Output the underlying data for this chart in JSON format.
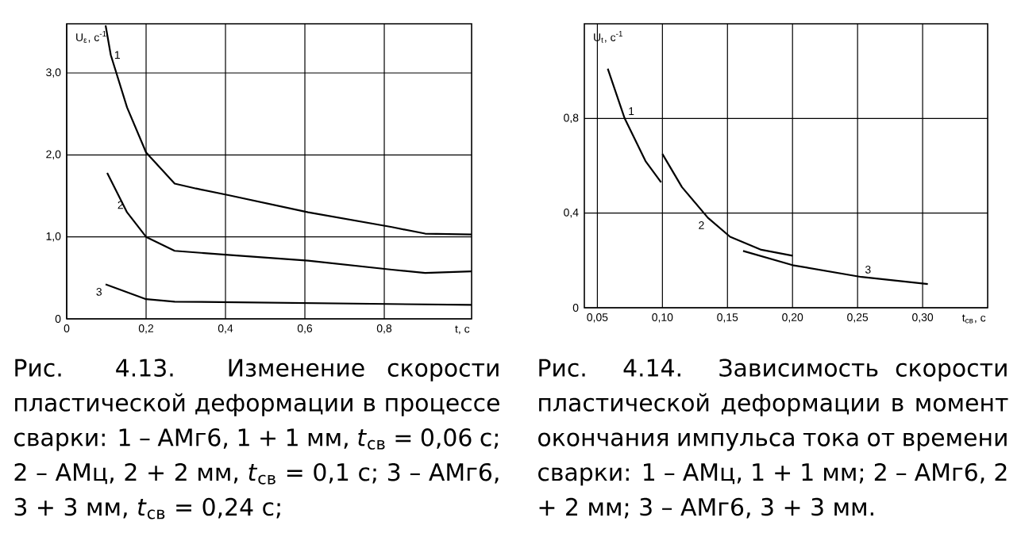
{
  "chart_data": [
    {
      "type": "line",
      "ylabel": "U$_{ε}$, с$^{-1}$",
      "xlabel": "t, с",
      "xlim": [
        0,
        1.02
      ],
      "ylim": [
        0,
        3.6
      ],
      "xticks": [
        0,
        {
          "value": 0.2,
          "label": "0,2"
        },
        {
          "value": 0.4,
          "label": "0,4"
        },
        {
          "value": 0.6,
          "label": "0,6"
        },
        {
          "value": 0.8,
          "label": "0,8"
        }
      ],
      "yticks": [
        0,
        {
          "value": 1,
          "label": "1,0"
        },
        {
          "value": 2,
          "label": "2,0"
        },
        {
          "value": 3,
          "label": "3,0"
        }
      ],
      "grid": true,
      "marker": "none",
      "line_style": "solid",
      "series": [
        {
          "color": "#000000",
          "x": [
            0.098,
            0.111,
            0.152,
            0.2,
            0.272,
            0.326,
            0.407,
            0.608,
            0.819,
            0.903,
            1.02
          ],
          "values": [
            3.58,
            3.22,
            2.58,
            2.03,
            1.65,
            1.59,
            1.51,
            1.3,
            1.12,
            1.04,
            1.03
          ]
        },
        {
          "color": "#000000",
          "x": [
            0.102,
            0.152,
            0.2,
            0.272,
            0.407,
            0.608,
            0.819,
            0.903,
            1.02
          ],
          "values": [
            1.78,
            1.3,
            1.0,
            0.83,
            0.78,
            0.71,
            0.6,
            0.56,
            0.58
          ]
        },
        {
          "color": "#000000",
          "x": [
            0.098,
            0.2,
            0.272,
            1.02
          ],
          "values": [
            0.42,
            0.24,
            0.21,
            0.17
          ]
        }
      ],
      "annotations": [
        {
          "text": "1",
          "x": 0.111,
          "y": 3.22
        },
        {
          "text": "2",
          "x": 0.152,
          "y": 1.3
        },
        {
          "text": "3",
          "x": 0.098,
          "y": 0.42
        },
        "Рис. 4.13. Изменение скорости пластической деформации в процессе сварки: 1 – АМг6, 1 + 1 мм, *t*$_{св}$ = 0,06 с; 2 – АМц, 2 + 2 мм, *t*$_{св}$ = 0,1 с; 3 – АМг6, 3 + 3 мм, *t*$_{св}$ = 0,24 с;"
      ]
    },
    {
      "type": "line",
      "ylabel": "U$_{t}$, с$^{-1}$",
      "xlabel": "t$_{св}$, с",
      "xlim": [
        0.04,
        0.35
      ],
      "ylim": [
        0,
        1.2
      ],
      "xticks": [
        {
          "value": 0.05,
          "label": "0,05"
        },
        {
          "value": 0.1,
          "label": "0,10"
        },
        {
          "value": 0.15,
          "label": "0,15"
        },
        {
          "value": 0.2,
          "label": "0,20"
        },
        {
          "value": 0.25,
          "label": "0,25"
        },
        {
          "value": 0.3,
          "label": "0,30"
        }
      ],
      "yticks": [
        0,
        {
          "value": 0.4,
          "label": "0,4"
        },
        {
          "value": 0.8,
          "label": "0,8"
        }
      ],
      "grid": true,
      "marker": "none",
      "line_style": "solid",
      "series": [
        {
          "color": "#000000",
          "x": [
            0.058,
            0.071,
            0.087,
            0.099
          ],
          "values": [
            1.01,
            0.8,
            0.62,
            0.53
          ]
        },
        {
          "color": "#000000",
          "x": [
            0.1,
            0.115,
            0.135,
            0.152,
            0.176,
            0.2
          ],
          "values": [
            0.65,
            0.51,
            0.38,
            0.3,
            0.245,
            0.22
          ]
        },
        {
          "color": "#000000",
          "x": [
            0.162,
            0.2,
            0.253,
            0.304
          ],
          "values": [
            0.24,
            0.18,
            0.13,
            0.1
          ]
        }
      ],
      "annotations": [
        {
          "text": "1",
          "x": 0.071,
          "y": 0.8
        },
        {
          "text": "2",
          "x": 0.135,
          "y": 0.38
        },
        {
          "text": "3",
          "x": 0.253,
          "y": 0.13
        },
        "Рис. 4.14. Зависимость скорости пластической деформации в момент окончания импульса тока от времени сварки: 1 – АМц, 1 + 1 мм; 2 – АМг6, 2 + 2 мм; 3 – АМг6, 3 + 3 мм."
      ]
    }
  ]
}
